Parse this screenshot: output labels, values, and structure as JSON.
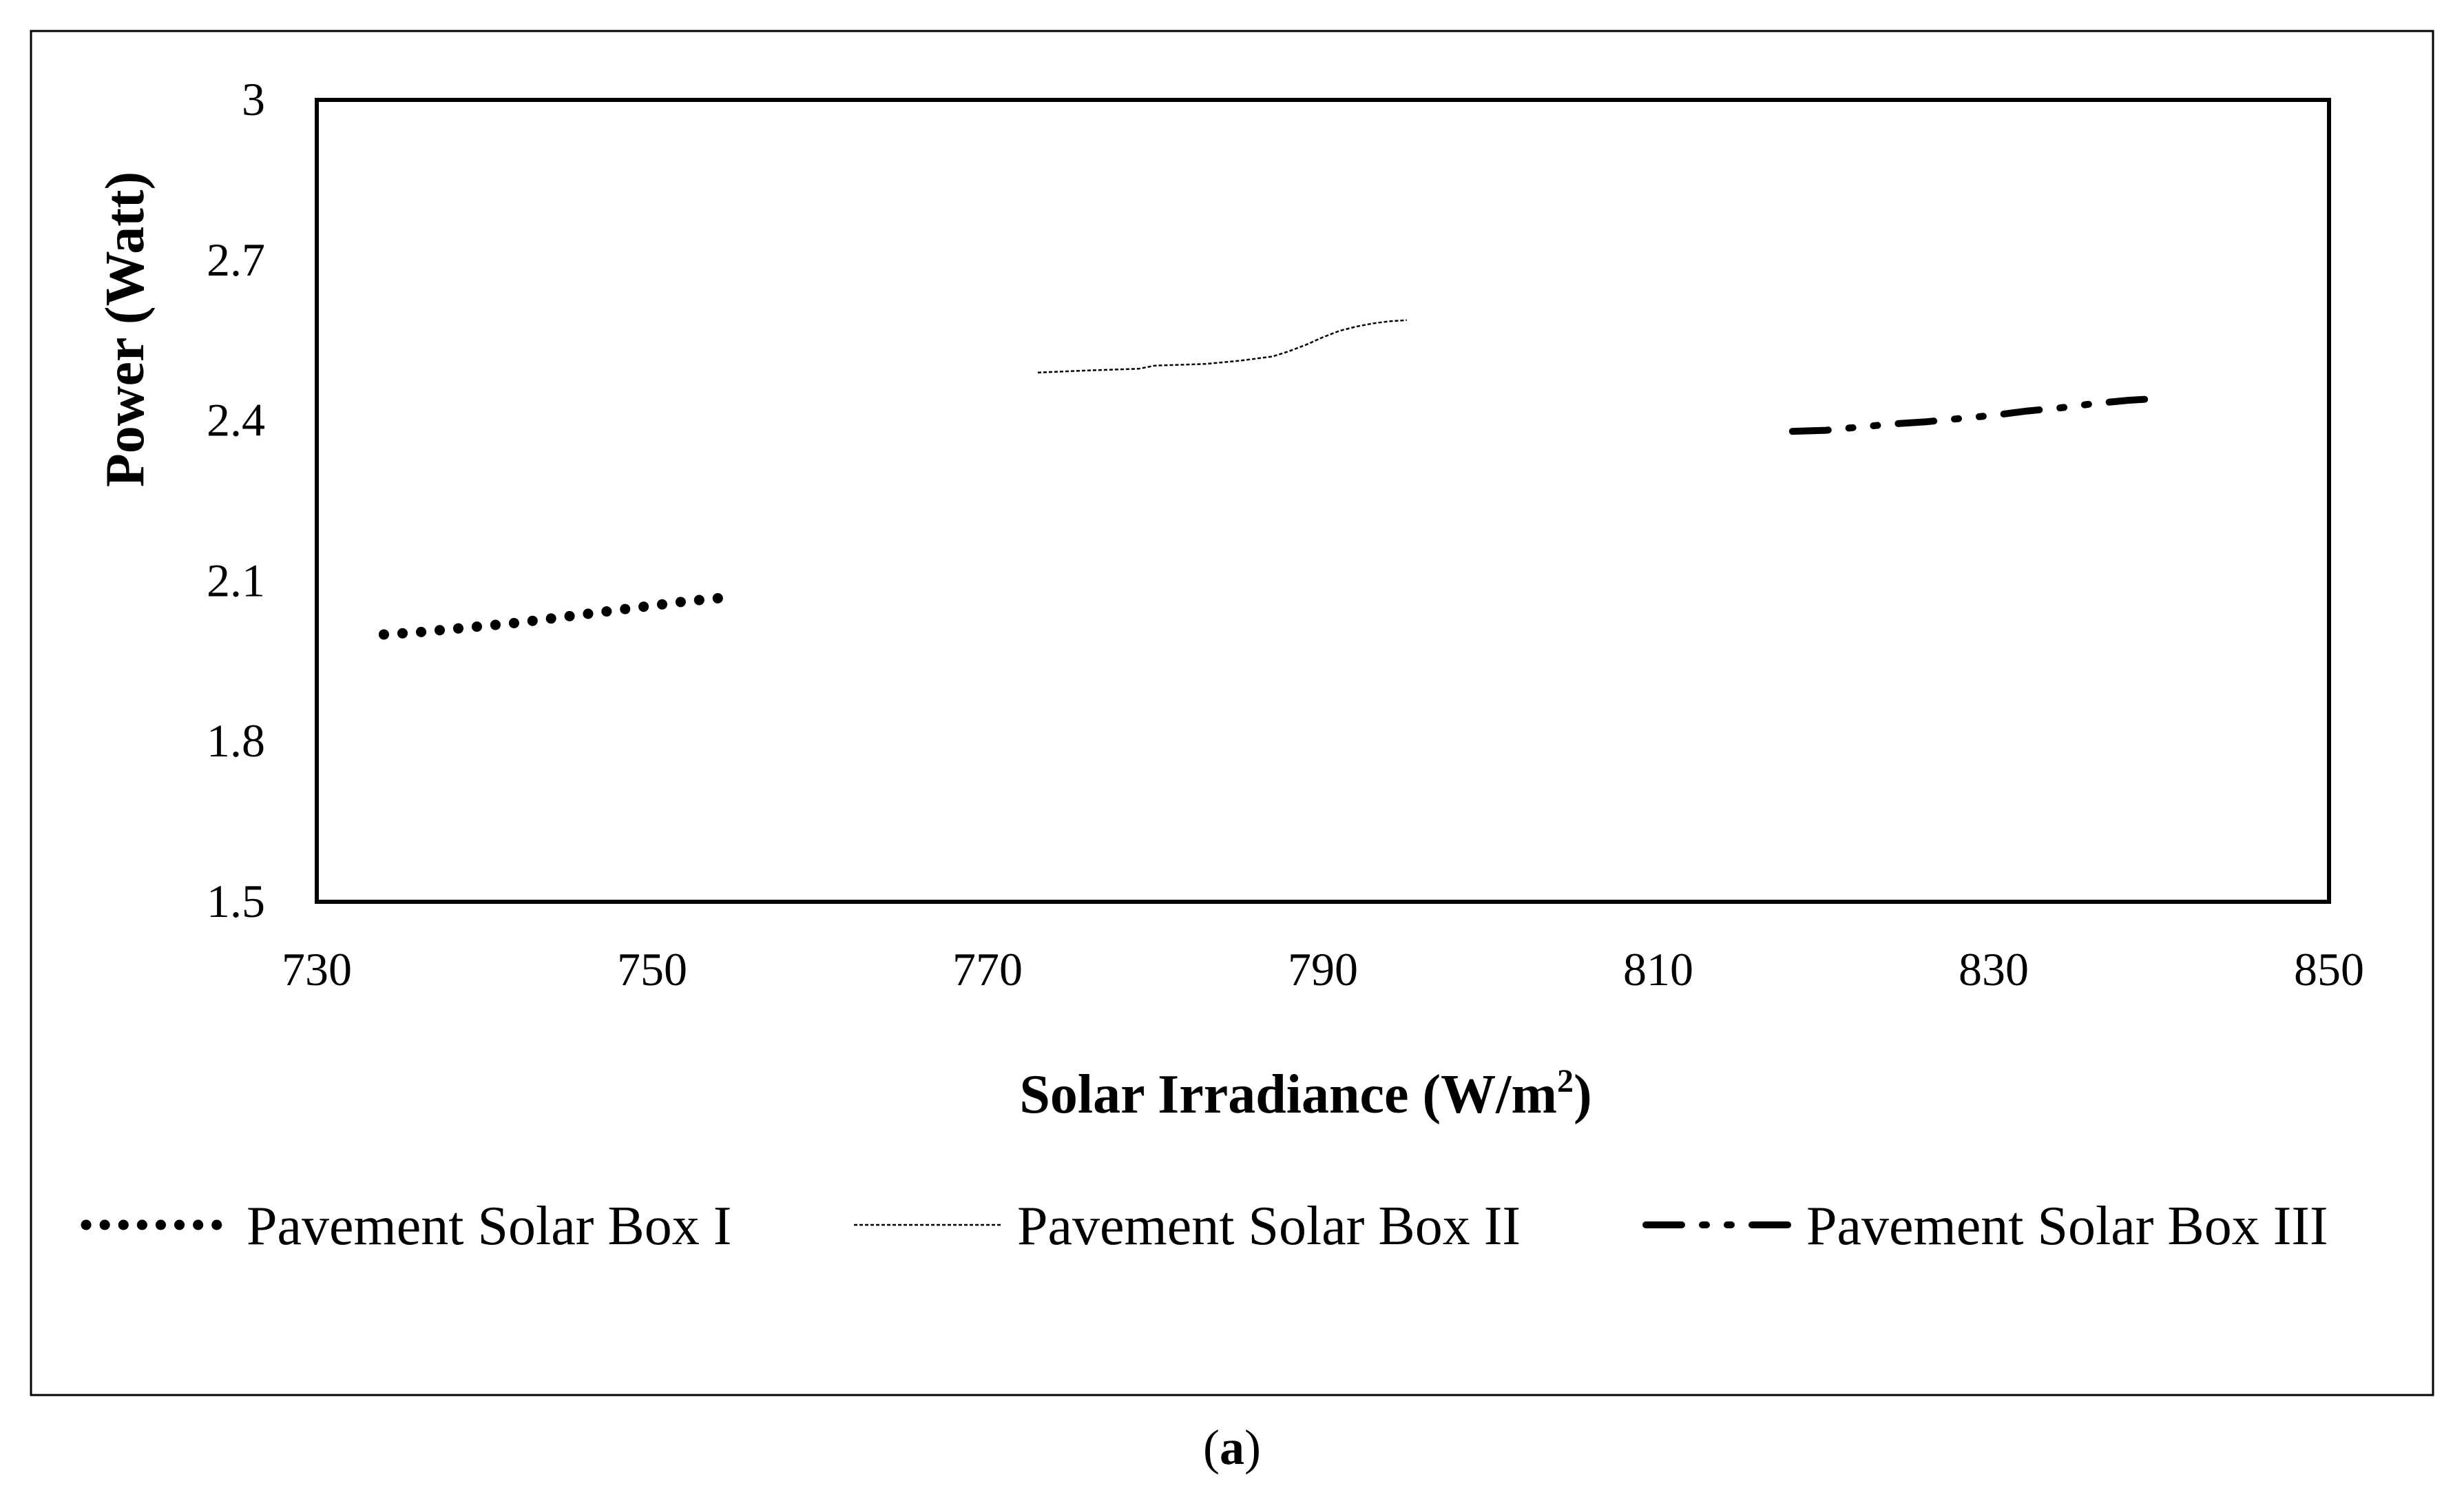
{
  "chart_data": {
    "type": "line",
    "title": "",
    "xlabel": "Solar Irradiance (W/m",
    "xlabel_superscript": "2",
    "xlabel_suffix": ")",
    "ylabel": "Power (Watt)",
    "xlim": [
      730,
      850
    ],
    "ylim": [
      1.5,
      3
    ],
    "xticks": [
      "730",
      "750",
      "770",
      "790",
      "810",
      "830",
      "850"
    ],
    "yticks": [
      "1.5",
      "1.8",
      "2.1",
      "2.4",
      "2.7",
      "3"
    ],
    "grid": false,
    "legend_position": "bottom",
    "series": [
      {
        "name": "Pavement Solar Box I",
        "style": "dotted",
        "x": [
          734,
          736,
          738,
          740,
          742,
          744,
          746,
          748,
          750,
          752,
          754,
          755
        ],
        "y": [
          2.0,
          2.004,
          2.01,
          2.016,
          2.022,
          2.03,
          2.038,
          2.046,
          2.054,
          2.062,
          2.068,
          2.072
        ]
      },
      {
        "name": "Pavement Solar Box II",
        "style": "fine-dash",
        "x": [
          773,
          776,
          779,
          780,
          783,
          785,
          787,
          788,
          789,
          790,
          791,
          792,
          793,
          794,
          795
        ],
        "y": [
          2.49,
          2.494,
          2.497,
          2.503,
          2.506,
          2.512,
          2.52,
          2.53,
          2.542,
          2.556,
          2.568,
          2.576,
          2.582,
          2.586,
          2.588
        ]
      },
      {
        "name": "Pavement Solar Box III",
        "style": "dash-dot-dot",
        "x": [
          818,
          820,
          822,
          824,
          826,
          828,
          830,
          832,
          834,
          836,
          838,
          839
        ],
        "y": [
          2.38,
          2.382,
          2.388,
          2.394,
          2.398,
          2.404,
          2.41,
          2.418,
          2.424,
          2.432,
          2.438,
          2.44
        ]
      }
    ],
    "caption": "a"
  }
}
